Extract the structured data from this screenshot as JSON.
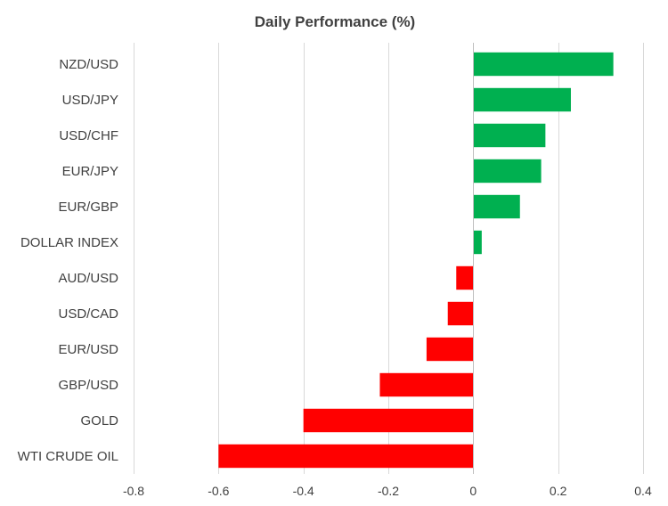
{
  "chart_data": {
    "type": "bar",
    "orientation": "horizontal",
    "title": "Daily Performance  (%)",
    "xlabel": "",
    "ylabel": "",
    "xlim": [
      -0.8,
      0.4
    ],
    "x_ticks": [
      -0.8,
      -0.6,
      -0.4,
      -0.2,
      0,
      0.2,
      0.4
    ],
    "x_tick_labels": [
      "-0.8",
      "-0.6",
      "-0.4",
      "-0.2",
      "0",
      "0.2",
      "0.4"
    ],
    "grid": true,
    "legend": "none",
    "categories": [
      "NZD/USD",
      "USD/JPY",
      "USD/CHF",
      "EUR/JPY",
      "EUR/GBP",
      "DOLLAR INDEX",
      "AUD/USD",
      "USD/CAD",
      "EUR/USD",
      "GBP/USD",
      "GOLD",
      "WTI CRUDE OIL"
    ],
    "values": [
      0.33,
      0.23,
      0.17,
      0.16,
      0.11,
      0.02,
      -0.04,
      -0.06,
      -0.11,
      -0.22,
      -0.4,
      -0.6
    ],
    "colors": {
      "positive": "#00b050",
      "negative": "#ff0000"
    }
  }
}
